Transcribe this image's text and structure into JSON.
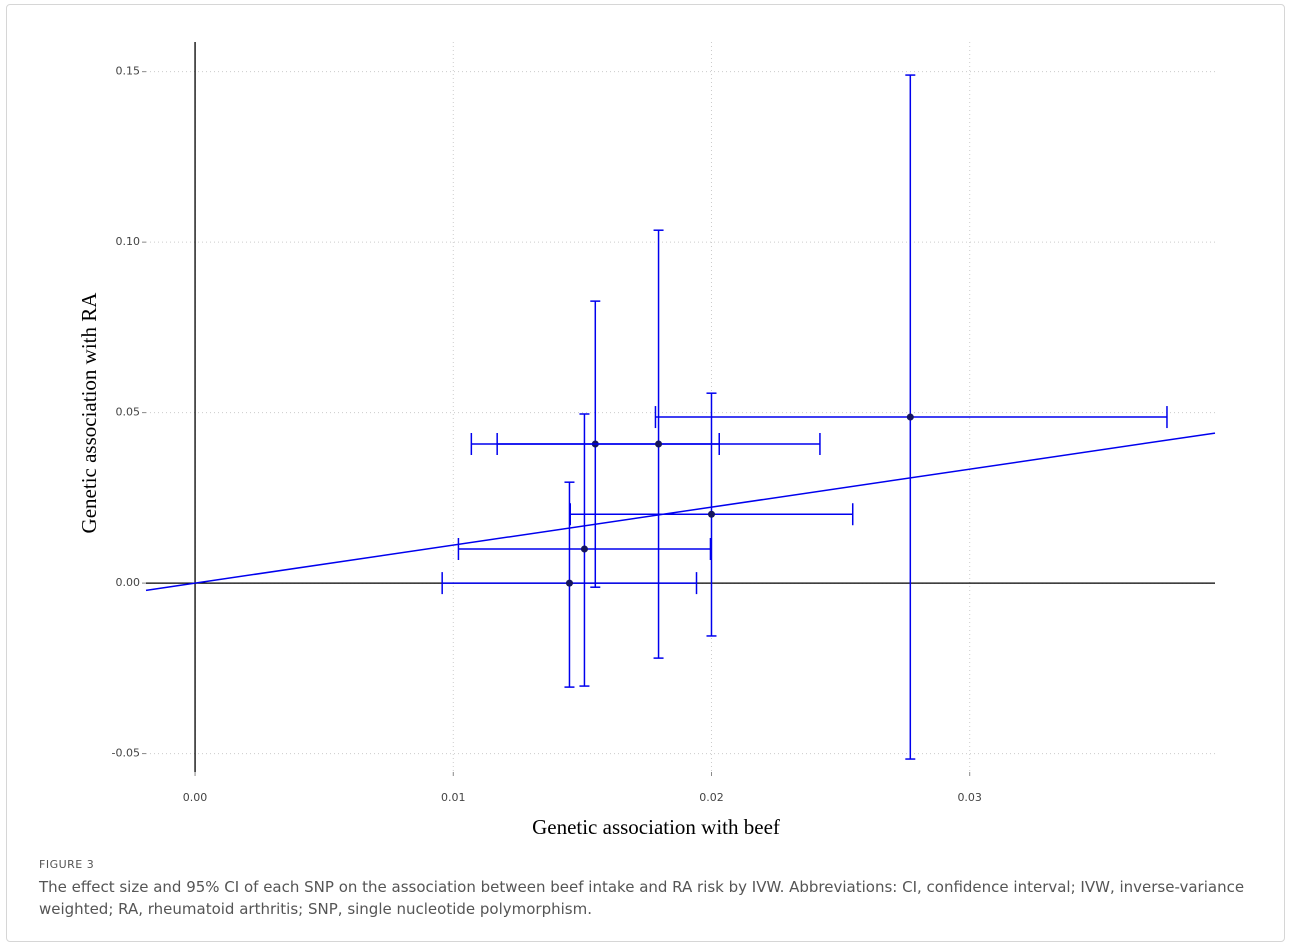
{
  "chart_data": {
    "type": "scatter",
    "xlabel": "Genetic association with beef",
    "ylabel": "Genetic association with RA",
    "x": [
      0.0145,
      0.01508,
      0.0155,
      0.01795,
      0.02,
      0.0277
    ],
    "values": [
      0,
      0.01,
      0.0408,
      0.0408,
      0.0202,
      0.0487
    ],
    "x_low": [
      0.00957,
      0.0102,
      0.0107,
      0.0117,
      0.01453,
      0.01783
    ],
    "x_high": [
      0.01942,
      0.01996,
      0.0203,
      0.0242,
      0.02547,
      0.03764
    ],
    "y_low": [
      -0.0305,
      -0.0302,
      -0.0012,
      -0.022,
      -0.0155,
      -0.0516
    ],
    "y_high": [
      0.0296,
      0.0496,
      0.0827,
      0.1035,
      0.0557,
      0.149
    ],
    "slope": 1.114,
    "color": "#0000ee",
    "point_color": "#15155e",
    "xlim": [
      -0.0019,
      0.0395
    ],
    "ylim": [
      -0.0554,
      0.1587
    ],
    "xticks": [
      {
        "value": 0,
        "label": "0.00"
      },
      0.01,
      0.02,
      0.03
    ],
    "yticks": [
      -0.05,
      {
        "value": 0,
        "label": "0.00"
      },
      0.05,
      {
        "value": 0.1,
        "label": "0.10"
      },
      0.15
    ],
    "grid": true
  },
  "caption": {
    "label": "FIGURE 3",
    "text": "The effect size and 95% CI of each SNP on the association between beef intake and RA risk by IVW. Abbreviations: CI, confidence interval; IVW, inverse-variance weighted; RA, rheumatoid arthritis; SNP, single nucleotide polymorphism."
  }
}
